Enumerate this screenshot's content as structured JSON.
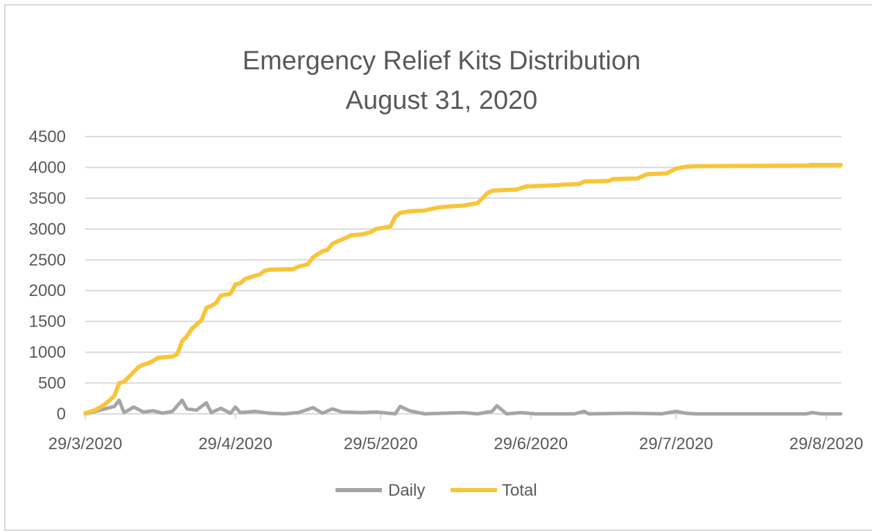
{
  "chart_data": {
    "type": "line",
    "title": "Emergency Relief Kits Distribution",
    "subtitle": "August 31, 2020",
    "xlabel": "",
    "ylabel": "",
    "xlim": [
      "2020-03-29",
      "2020-08-31"
    ],
    "ylim": [
      0,
      4500
    ],
    "yticks": [
      0,
      500,
      1000,
      1500,
      2000,
      2500,
      3000,
      3500,
      4000,
      4500
    ],
    "ytick_labels": [
      "0",
      "500",
      "1000",
      "1500",
      "2000",
      "2500",
      "3000",
      "3500",
      "4000",
      "4500"
    ],
    "xticks": [
      "2020-03-29",
      "2020-04-29",
      "2020-05-29",
      "2020-06-29",
      "2020-07-29",
      "2020-08-29"
    ],
    "xtick_labels": [
      "29/3/2020",
      "29/4/2020",
      "29/5/2020",
      "29/6/2020",
      "29/7/2020",
      "29/8/2020"
    ],
    "grid": "horizontal",
    "legend": "bottom",
    "series": [
      {
        "name": "Daily",
        "color": "#a5a5a5",
        "points": [
          [
            "2020-03-29",
            0
          ],
          [
            "2020-03-31",
            40
          ],
          [
            "2020-04-02",
            80
          ],
          [
            "2020-04-04",
            120
          ],
          [
            "2020-04-05",
            220
          ],
          [
            "2020-04-06",
            20
          ],
          [
            "2020-04-08",
            110
          ],
          [
            "2020-04-10",
            30
          ],
          [
            "2020-04-12",
            50
          ],
          [
            "2020-04-14",
            10
          ],
          [
            "2020-04-16",
            40
          ],
          [
            "2020-04-18",
            220
          ],
          [
            "2020-04-19",
            80
          ],
          [
            "2020-04-21",
            60
          ],
          [
            "2020-04-23",
            180
          ],
          [
            "2020-04-24",
            20
          ],
          [
            "2020-04-26",
            90
          ],
          [
            "2020-04-28",
            10
          ],
          [
            "2020-04-29",
            110
          ],
          [
            "2020-04-30",
            20
          ],
          [
            "2020-05-03",
            40
          ],
          [
            "2020-05-06",
            10
          ],
          [
            "2020-05-09",
            0
          ],
          [
            "2020-05-12",
            20
          ],
          [
            "2020-05-15",
            100
          ],
          [
            "2020-05-17",
            10
          ],
          [
            "2020-05-19",
            80
          ],
          [
            "2020-05-21",
            30
          ],
          [
            "2020-05-25",
            20
          ],
          [
            "2020-05-28",
            30
          ],
          [
            "2020-06-01",
            0
          ],
          [
            "2020-06-02",
            120
          ],
          [
            "2020-06-04",
            50
          ],
          [
            "2020-06-07",
            0
          ],
          [
            "2020-06-11",
            10
          ],
          [
            "2020-06-15",
            20
          ],
          [
            "2020-06-18",
            0
          ],
          [
            "2020-06-21",
            40
          ],
          [
            "2020-06-22",
            130
          ],
          [
            "2020-06-24",
            0
          ],
          [
            "2020-06-27",
            20
          ],
          [
            "2020-06-30",
            0
          ],
          [
            "2020-07-08",
            0
          ],
          [
            "2020-07-10",
            40
          ],
          [
            "2020-07-11",
            0
          ],
          [
            "2020-07-20",
            10
          ],
          [
            "2020-07-26",
            0
          ],
          [
            "2020-07-29",
            40
          ],
          [
            "2020-07-31",
            10
          ],
          [
            "2020-08-02",
            0
          ],
          [
            "2020-08-25",
            0
          ],
          [
            "2020-08-26",
            20
          ],
          [
            "2020-08-28",
            0
          ],
          [
            "2020-09-01",
            0
          ]
        ]
      },
      {
        "name": "Total",
        "color": "#f8c53a",
        "points": [
          [
            "2020-03-29",
            10
          ],
          [
            "2020-03-31",
            60
          ],
          [
            "2020-04-02",
            150
          ],
          [
            "2020-04-04",
            290
          ],
          [
            "2020-04-05",
            500
          ],
          [
            "2020-04-06",
            520
          ],
          [
            "2020-04-07",
            600
          ],
          [
            "2020-04-08",
            680
          ],
          [
            "2020-04-09",
            760
          ],
          [
            "2020-04-10",
            800
          ],
          [
            "2020-04-11",
            820
          ],
          [
            "2020-04-12",
            860
          ],
          [
            "2020-04-13",
            910
          ],
          [
            "2020-04-16",
            930
          ],
          [
            "2020-04-17",
            970
          ],
          [
            "2020-04-18",
            1180
          ],
          [
            "2020-04-19",
            1260
          ],
          [
            "2020-04-20",
            1380
          ],
          [
            "2020-04-22",
            1520
          ],
          [
            "2020-04-23",
            1720
          ],
          [
            "2020-04-24",
            1750
          ],
          [
            "2020-04-25",
            1800
          ],
          [
            "2020-04-26",
            1920
          ],
          [
            "2020-04-28",
            1950
          ],
          [
            "2020-04-29",
            2100
          ],
          [
            "2020-04-30",
            2120
          ],
          [
            "2020-05-01",
            2190
          ],
          [
            "2020-05-03",
            2240
          ],
          [
            "2020-05-04",
            2260
          ],
          [
            "2020-05-05",
            2320
          ],
          [
            "2020-05-06",
            2340
          ],
          [
            "2020-05-11",
            2350
          ],
          [
            "2020-05-12",
            2390
          ],
          [
            "2020-05-14",
            2430
          ],
          [
            "2020-05-15",
            2540
          ],
          [
            "2020-05-17",
            2640
          ],
          [
            "2020-05-18",
            2660
          ],
          [
            "2020-05-19",
            2760
          ],
          [
            "2020-05-21",
            2830
          ],
          [
            "2020-05-23",
            2900
          ],
          [
            "2020-05-25",
            2910
          ],
          [
            "2020-05-27",
            2950
          ],
          [
            "2020-05-28",
            3000
          ],
          [
            "2020-05-31",
            3040
          ],
          [
            "2020-06-01",
            3200
          ],
          [
            "2020-06-02",
            3260
          ],
          [
            "2020-06-04",
            3290
          ],
          [
            "2020-06-07",
            3300
          ],
          [
            "2020-06-10",
            3350
          ],
          [
            "2020-06-13",
            3370
          ],
          [
            "2020-06-15",
            3380
          ],
          [
            "2020-06-18",
            3420
          ],
          [
            "2020-06-20",
            3580
          ],
          [
            "2020-06-21",
            3620
          ],
          [
            "2020-06-23",
            3630
          ],
          [
            "2020-06-26",
            3640
          ],
          [
            "2020-06-28",
            3690
          ],
          [
            "2020-07-01",
            3700
          ],
          [
            "2020-07-04",
            3710
          ],
          [
            "2020-07-06",
            3720
          ],
          [
            "2020-07-09",
            3730
          ],
          [
            "2020-07-10",
            3770
          ],
          [
            "2020-07-15",
            3780
          ],
          [
            "2020-07-16",
            3810
          ],
          [
            "2020-07-21",
            3820
          ],
          [
            "2020-07-23",
            3890
          ],
          [
            "2020-07-27",
            3900
          ],
          [
            "2020-07-29",
            3980
          ],
          [
            "2020-07-31",
            4010
          ],
          [
            "2020-08-02",
            4020
          ],
          [
            "2020-08-25",
            4030
          ],
          [
            "2020-08-26",
            4040
          ],
          [
            "2020-09-01",
            4040
          ]
        ]
      }
    ]
  }
}
